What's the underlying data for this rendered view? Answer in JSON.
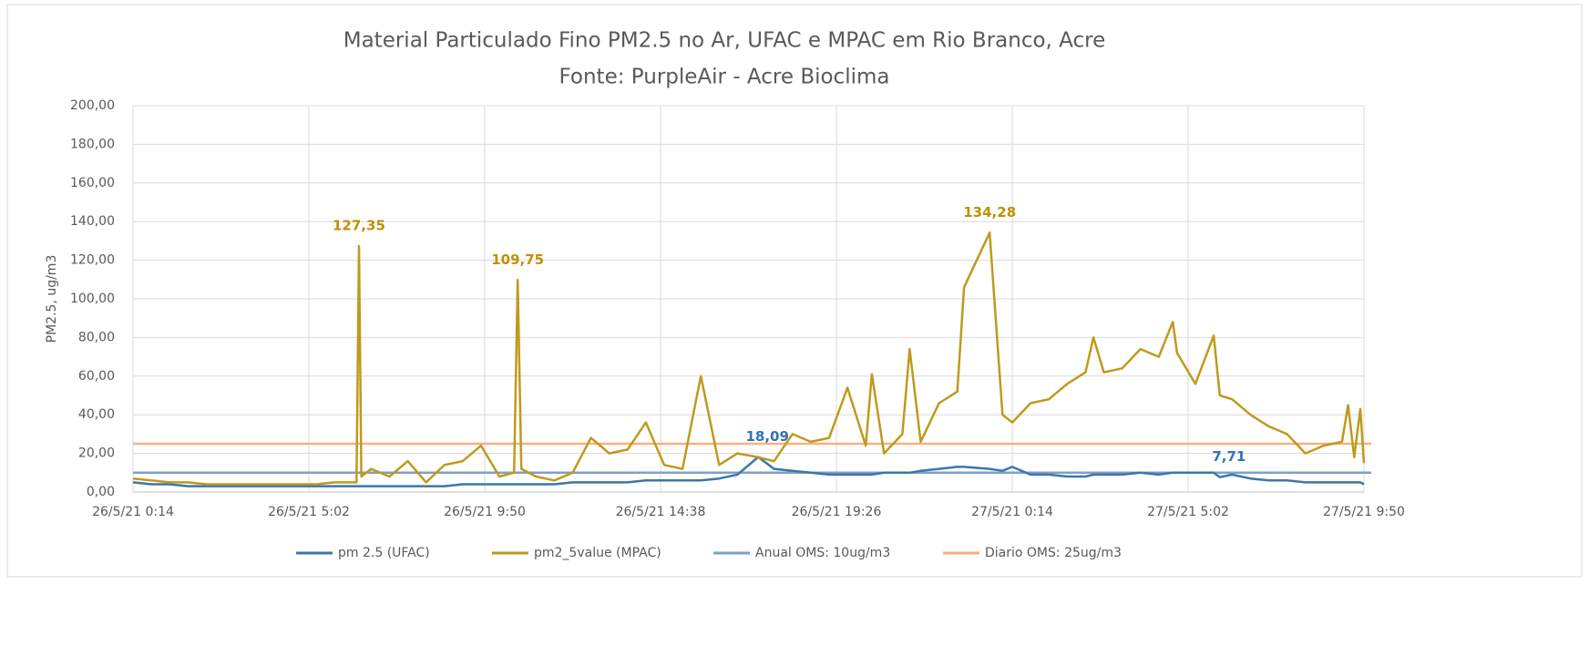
{
  "chart_data": {
    "type": "line",
    "title": "Material Particulado Fino PM2.5 no Ar, UFAC e  MPAC em Rio Branco, Acre",
    "subtitle": "Fonte: PurpleAir - Acre Bioclima",
    "y_label": "PM2.5, ug/m3",
    "ylim": [
      0,
      200
    ],
    "yticks": [
      {
        "value": 0,
        "label": "0,00"
      },
      {
        "value": 20,
        "label": "20,00"
      },
      {
        "value": 40,
        "label": "40,00"
      },
      {
        "value": 60,
        "label": "60,00"
      },
      {
        "value": 80,
        "label": "80,00"
      },
      {
        "value": 100,
        "label": "100,00"
      },
      {
        "value": 120,
        "label": "120,00"
      },
      {
        "value": 140,
        "label": "140,00"
      },
      {
        "value": 160,
        "label": "160,00"
      },
      {
        "value": 180,
        "label": "180,00"
      },
      {
        "value": 200,
        "label": "200,00"
      }
    ],
    "xlim": [
      "26/5/21 0:14",
      "27/5/21 9:50"
    ],
    "xticks": [
      "26/5/21 0:14",
      "26/5/21 5:02",
      "26/5/21 9:50",
      "26/5/21 14:38",
      "26/5/21 19:26",
      "27/5/21 0:14",
      "27/5/21 5:02",
      "27/5/21 9:50"
    ],
    "grid": true,
    "legend": "bottom",
    "x": [
      "26/5/21 0:14",
      "26/5/21 0:44",
      "26/5/21 1:14",
      "26/5/21 1:44",
      "26/5/21 2:14",
      "26/5/21 2:44",
      "26/5/21 3:14",
      "26/5/21 3:44",
      "26/5/21 4:14",
      "26/5/21 4:44",
      "26/5/21 5:14",
      "26/5/21 5:44",
      "26/5/21 6:14",
      "26/5/21 6:20",
      "26/5/21 6:24",
      "26/5/21 6:28",
      "26/5/21 6:44",
      "26/5/21 7:14",
      "26/5/21 7:44",
      "26/5/21 8:14",
      "26/5/21 8:44",
      "26/5/21 9:14",
      "26/5/21 9:44",
      "26/5/21 10:14",
      "26/5/21 10:38",
      "26/5/21 10:44",
      "26/5/21 10:50",
      "26/5/21 11:14",
      "26/5/21 11:44",
      "26/5/21 12:14",
      "26/5/21 12:44",
      "26/5/21 13:14",
      "26/5/21 13:44",
      "26/5/21 14:14",
      "26/5/21 14:44",
      "26/5/21 15:14",
      "26/5/21 15:44",
      "26/5/21 16:14",
      "26/5/21 16:44",
      "26/5/21 17:18",
      "26/5/21 17:44",
      "26/5/21 18:14",
      "26/5/21 18:44",
      "26/5/21 19:14",
      "26/5/21 19:44",
      "26/5/21 20:14",
      "26/5/21 20:24",
      "26/5/21 20:44",
      "26/5/21 21:14",
      "26/5/21 21:26",
      "26/5/21 21:44",
      "26/5/21 22:14",
      "26/5/21 22:44",
      "26/5/21 22:55",
      "26/5/21 23:37",
      "26/5/21 23:58",
      "27/5/21 0:14",
      "27/5/21 0:44",
      "27/5/21 1:14",
      "27/5/21 1:44",
      "27/5/21 2:14",
      "27/5/21 2:27",
      "27/5/21 2:44",
      "27/5/21 3:14",
      "27/5/21 3:44",
      "27/5/21 4:14",
      "27/5/21 4:37",
      "27/5/21 4:44",
      "27/5/21 5:14",
      "27/5/21 5:44",
      "27/5/21 5:54",
      "27/5/21 6:14",
      "27/5/21 6:44",
      "27/5/21 7:14",
      "27/5/21 7:44",
      "27/5/21 8:14",
      "27/5/21 8:44",
      "27/5/21 9:14",
      "27/5/21 9:24",
      "27/5/21 9:34",
      "27/5/21 9:44",
      "27/5/21 9:50"
    ],
    "series": [
      {
        "name": "pm 2.5 (UFAC)",
        "color": "#3b77a8",
        "label_color": "#2e75b6",
        "values": [
          5,
          4,
          4,
          3,
          3,
          3,
          3,
          3,
          3,
          3,
          3,
          3,
          3,
          3,
          3,
          3,
          3,
          3,
          3,
          3,
          3,
          4,
          4,
          4,
          4,
          4,
          4,
          4,
          4,
          5,
          5,
          5,
          5,
          6,
          6,
          6,
          6,
          7,
          9,
          18.09,
          12,
          11,
          10,
          9,
          9,
          9,
          9,
          10,
          10,
          10,
          11,
          12,
          13,
          13,
          12,
          11,
          13,
          9,
          9,
          8,
          8,
          9,
          9,
          9,
          10,
          9,
          10,
          10,
          10,
          10,
          7.71,
          9,
          7,
          6,
          6,
          5,
          5,
          5,
          5,
          5,
          5,
          4
        ],
        "value_labels": [
          null,
          null,
          null,
          null,
          null,
          null,
          null,
          null,
          null,
          null,
          null,
          null,
          null,
          null,
          null,
          null,
          null,
          null,
          null,
          null,
          null,
          null,
          null,
          null,
          null,
          null,
          null,
          null,
          null,
          null,
          null,
          null,
          null,
          null,
          null,
          null,
          null,
          null,
          null,
          "18,09",
          null,
          null,
          null,
          null,
          null,
          null,
          null,
          null,
          null,
          null,
          null,
          null,
          null,
          null,
          null,
          null,
          null,
          null,
          null,
          null,
          null,
          null,
          null,
          null,
          null,
          null,
          null,
          null,
          null,
          null,
          "7,71",
          null,
          null,
          null,
          null,
          null,
          null,
          null,
          null,
          null,
          null,
          null
        ]
      },
      {
        "name": "pm2_5value (MPAC)",
        "color": "#bf9a1c",
        "label_color": "#bf9000",
        "values": [
          7,
          6,
          5,
          5,
          4,
          4,
          4,
          4,
          4,
          4,
          4,
          5,
          5,
          5,
          127.35,
          8,
          12,
          8,
          16,
          5,
          14,
          16,
          24,
          8,
          10,
          109.75,
          12,
          8,
          6,
          10,
          28,
          20,
          22,
          36,
          14,
          12,
          60,
          14,
          20,
          18,
          16,
          30,
          26,
          28,
          54,
          24,
          61,
          20,
          30,
          74,
          26,
          46,
          52,
          106,
          134.28,
          40,
          36,
          46,
          48,
          56,
          62,
          80,
          62,
          64,
          74,
          70,
          88,
          72,
          56,
          81,
          50,
          48,
          40,
          34,
          30,
          20,
          24,
          26,
          45,
          18,
          43,
          15
        ],
        "value_labels": [
          null,
          null,
          null,
          null,
          null,
          null,
          null,
          null,
          null,
          null,
          null,
          null,
          null,
          null,
          "127,35",
          null,
          null,
          null,
          null,
          null,
          null,
          null,
          null,
          null,
          null,
          "109,75",
          null,
          null,
          null,
          null,
          null,
          null,
          null,
          null,
          null,
          null,
          null,
          null,
          null,
          null,
          null,
          null,
          null,
          null,
          null,
          null,
          null,
          null,
          null,
          null,
          null,
          null,
          null,
          null,
          "134,28",
          null,
          null,
          null,
          null,
          null,
          null,
          null,
          null,
          null,
          null,
          null,
          null,
          null,
          null,
          null,
          null,
          null,
          null,
          null,
          null,
          null,
          null,
          null,
          null,
          null,
          null,
          null
        ]
      }
    ],
    "reference_lines": [
      {
        "name": "Anual OMS: 10ug/m3",
        "color": "#7f9fcf",
        "value": 10
      },
      {
        "name": "Diario OMS: 25ug/m3",
        "color": "#f4b183",
        "value": 25
      }
    ]
  }
}
